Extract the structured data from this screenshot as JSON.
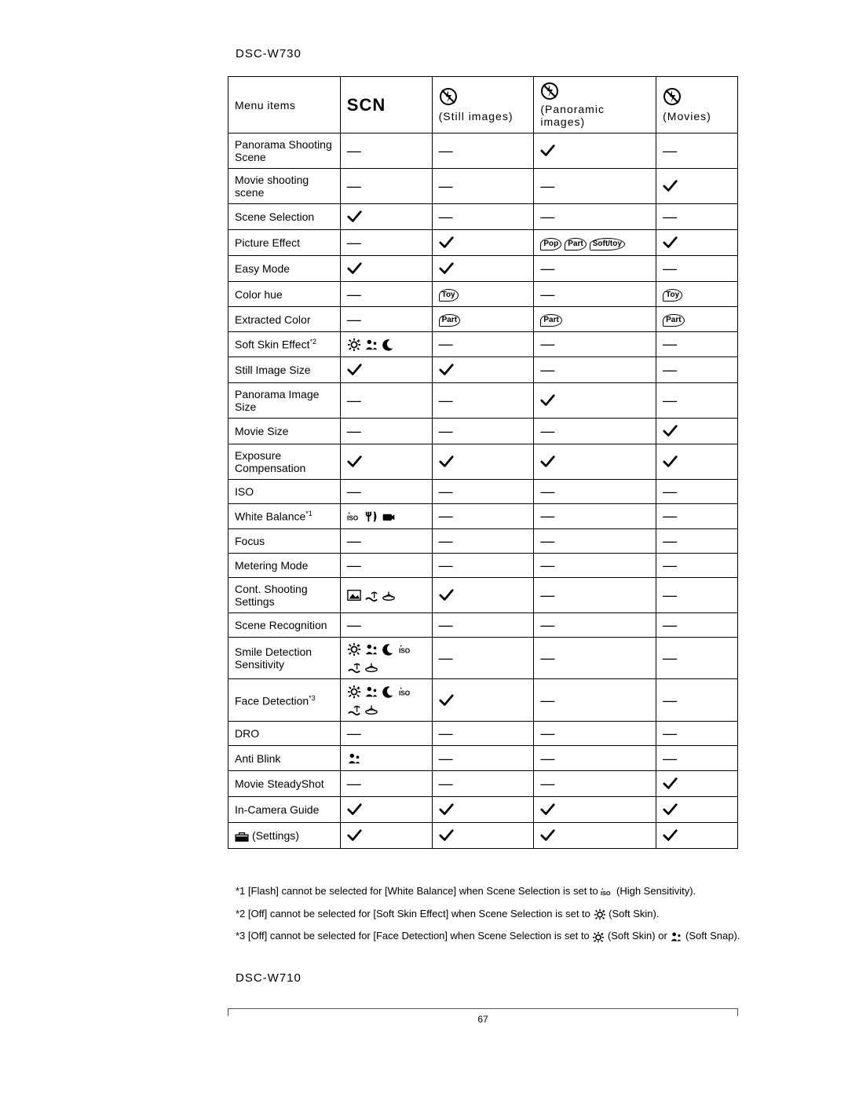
{
  "page": {
    "model_top": "DSC-W730",
    "model_bottom": "DSC-W710",
    "page_number": "67"
  },
  "columns": {
    "menu": "Menu items",
    "scn": "SCN",
    "still": "(Still images)",
    "pano": "(Panoramic images)",
    "movies": "(Movies)"
  },
  "legend": {
    "check": "✓",
    "dash": "—"
  },
  "icons": {
    "noflash": "no-flash-icon",
    "toy": "Toy",
    "part": "Part",
    "pop": "Pop",
    "softtoy": "Soft/toy",
    "scene_group": "scene-people-icons",
    "iso_wb": "iso-wb-icons",
    "cont_group": "cont-shoot-icons",
    "smile_group": "smile-face-iso-icons",
    "person": "person-icon",
    "toolbox": "toolbox-icon"
  },
  "rows": [
    {
      "label": "Panorama Shooting Scene",
      "scn": "dash",
      "still": "dash",
      "pano": "check",
      "movie": "dash"
    },
    {
      "label": "Movie shooting scene",
      "scn": "dash",
      "still": "dash",
      "pano": "dash",
      "movie": "check"
    },
    {
      "label": "Scene Selection",
      "scn": "check",
      "still": "dash",
      "pano": "dash",
      "movie": "dash"
    },
    {
      "label": "Picture Effect",
      "scn": "dash",
      "still": "check",
      "pano": "pop_part_soft",
      "movie": "check"
    },
    {
      "label": "Easy Mode",
      "scn": "check",
      "still": "check",
      "pano": "dash",
      "movie": "dash"
    },
    {
      "label": "Color hue",
      "scn": "dash",
      "still": "toy",
      "pano": "dash",
      "movie": "toy"
    },
    {
      "label": "Extracted Color",
      "scn": "dash",
      "still": "part",
      "pano": "part",
      "movie": "part"
    },
    {
      "label": "Soft Skin Effect",
      "sup": "*2",
      "scn": "scene_group",
      "still": "dash",
      "pano": "dash",
      "movie": "dash"
    },
    {
      "label": "Still Image Size",
      "scn": "check",
      "still": "check",
      "pano": "dash",
      "movie": "dash"
    },
    {
      "label": "Panorama Image Size",
      "scn": "dash",
      "still": "dash",
      "pano": "check",
      "movie": "dash"
    },
    {
      "label": "Movie Size",
      "scn": "dash",
      "still": "dash",
      "pano": "dash",
      "movie": "check"
    },
    {
      "label": "Exposure Compensation",
      "scn": "check",
      "still": "check",
      "pano": "check",
      "movie": "check"
    },
    {
      "label": "ISO",
      "scn": "dash",
      "still": "dash",
      "pano": "dash",
      "movie": "dash"
    },
    {
      "label": "White Balance",
      "sup": "*1",
      "scn": "iso_wb",
      "still": "dash",
      "pano": "dash",
      "movie": "dash"
    },
    {
      "label": "Focus",
      "scn": "dash",
      "still": "dash",
      "pano": "dash",
      "movie": "dash"
    },
    {
      "label": "Metering Mode",
      "scn": "dash",
      "still": "dash",
      "pano": "dash",
      "movie": "dash"
    },
    {
      "label": "Cont. Shooting Settings",
      "scn": "cont_group",
      "still": "check",
      "pano": "dash",
      "movie": "dash"
    },
    {
      "label": "Scene Recognition",
      "scn": "dash",
      "still": "dash",
      "pano": "dash",
      "movie": "dash"
    },
    {
      "label": "Smile Detection Sensitivity",
      "scn": "smile_group",
      "still": "dash",
      "pano": "dash",
      "movie": "dash"
    },
    {
      "label": "Face Detection",
      "sup": "*3",
      "scn": "smile_group",
      "still": "check",
      "pano": "dash",
      "movie": "dash"
    },
    {
      "label": "DRO",
      "scn": "dash",
      "still": "dash",
      "pano": "dash",
      "movie": "dash"
    },
    {
      "label": "Anti Blink",
      "scn": "person",
      "still": "dash",
      "pano": "dash",
      "movie": "dash"
    },
    {
      "label": "Movie SteadyShot",
      "scn": "dash",
      "still": "dash",
      "pano": "dash",
      "movie": "check"
    },
    {
      "label": "In-Camera Guide",
      "scn": "check",
      "still": "check",
      "pano": "check",
      "movie": "check"
    },
    {
      "label": "(Settings)",
      "prefix_icon": "toolbox",
      "scn": "check",
      "still": "check",
      "pano": "check",
      "movie": "check"
    }
  ],
  "footnotes": {
    "f1_a": "*1 [Flash] cannot be selected for [White Balance] when Scene Selection is set to ",
    "f1_b": "(High Sensitivity).",
    "f2_a": "*2 [Off] cannot be selected for [Soft Skin Effect] when Scene Selection is set to ",
    "f2_b": "(Soft Skin).",
    "f3_a": "*3 [Off] cannot be selected for [Face Detection] when Scene Selection is set to ",
    "f3_b": "(Soft Skin) or ",
    "f3_c": "(Soft Snap).",
    "iso_label": "ISO",
    "softskin_icon": "soft-skin-icon",
    "softsnap_icon": "soft-snap-icon"
  },
  "style": {
    "text_color": "#000000",
    "bg_color": "#ffffff",
    "border_color": "#000000",
    "header_fontsize": 14,
    "body_fontsize": 14,
    "scn_fontsize": 22
  }
}
